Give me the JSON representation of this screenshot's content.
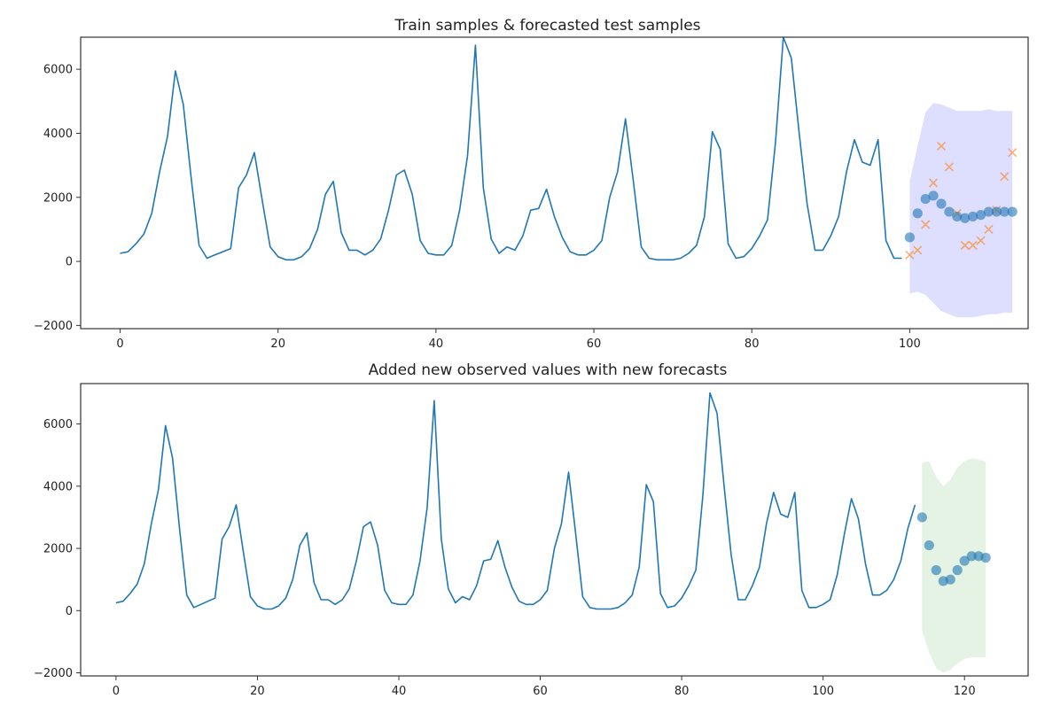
{
  "chart_data": [
    {
      "type": "line",
      "title": "Train samples & forecasted test samples",
      "xlabel": "",
      "ylabel": "",
      "xlim": [
        -5,
        115
      ],
      "ylim": [
        -2100,
        7000
      ],
      "xticks": [
        0,
        20,
        40,
        60,
        80,
        100
      ],
      "yticks": [
        -2000,
        0,
        2000,
        4000,
        6000
      ],
      "grid": false,
      "colors": {
        "train": "#1f77b4",
        "forecast": "#1f77b4",
        "test": "#ff7f0e",
        "band": "#0000ff"
      },
      "train": {
        "x": [
          0,
          1,
          2,
          3,
          4,
          5,
          6,
          7,
          8,
          9,
          10,
          11,
          12,
          13,
          14,
          15,
          16,
          17,
          18,
          19,
          20,
          21,
          22,
          23,
          24,
          25,
          26,
          27,
          28,
          29,
          30,
          31,
          32,
          33,
          34,
          35,
          36,
          37,
          38,
          39,
          40,
          41,
          42,
          43,
          44,
          45,
          46,
          47,
          48,
          49,
          50,
          51,
          52,
          53,
          54,
          55,
          56,
          57,
          58,
          59,
          60,
          61,
          62,
          63,
          64,
          65,
          66,
          67,
          68,
          69,
          70,
          71,
          72,
          73,
          74,
          75,
          76,
          77,
          78,
          79,
          80,
          81,
          82,
          83,
          84,
          85,
          86,
          87,
          88,
          89,
          90,
          91,
          92,
          93,
          94,
          95,
          96,
          97,
          98,
          99
        ],
        "y": [
          250,
          300,
          550,
          850,
          1500,
          2800,
          3900,
          5950,
          4900,
          2600,
          500,
          100,
          200,
          300,
          400,
          2300,
          2700,
          3400,
          1900,
          450,
          150,
          50,
          50,
          150,
          400,
          1000,
          2100,
          2500,
          900,
          350,
          350,
          200,
          350,
          700,
          1600,
          2700,
          2850,
          2100,
          650,
          250,
          200,
          200,
          500,
          1600,
          3300,
          6750,
          2300,
          700,
          250,
          450,
          350,
          800,
          1600,
          1650,
          2250,
          1400,
          750,
          300,
          200,
          200,
          350,
          650,
          2000,
          2800,
          4450,
          2500,
          450,
          100,
          50,
          50,
          50,
          100,
          250,
          500,
          1400,
          4050,
          3500,
          550,
          100,
          150,
          400,
          800,
          1300,
          3700,
          7000,
          6350,
          4000,
          1800,
          350,
          350,
          800,
          1400,
          2800,
          3800,
          3100,
          3000,
          3800,
          650,
          100,
          100
        ]
      },
      "forecast_mean": {
        "x": [
          100,
          101,
          102,
          103,
          104,
          105,
          106,
          107,
          108,
          109,
          110,
          111,
          112,
          113
        ],
        "y": [
          750,
          1500,
          1950,
          2050,
          1800,
          1550,
          1400,
          1350,
          1400,
          1450,
          1550,
          1550,
          1550,
          1550
        ]
      },
      "test_actual": {
        "x": [
          100,
          101,
          102,
          103,
          104,
          105,
          106,
          107,
          108,
          109,
          110,
          111,
          112,
          113
        ],
        "y": [
          200,
          350,
          1150,
          2450,
          3600,
          2950,
          1500,
          500,
          500,
          650,
          1000,
          1600,
          2650,
          3400
        ]
      },
      "interval_upper": [
        2500,
        3600,
        4650,
        4950,
        4900,
        4800,
        4700,
        4700,
        4700,
        4700,
        4750,
        4700,
        4700,
        4700
      ],
      "interval_lower": [
        -1000,
        -950,
        -1050,
        -1300,
        -1550,
        -1650,
        -1750,
        -1750,
        -1750,
        -1700,
        -1650,
        -1650,
        -1600,
        -1600
      ]
    },
    {
      "type": "line",
      "title": "Added new observed values with new forecasts",
      "xlabel": "",
      "ylabel": "",
      "xlim": [
        -5,
        129
      ],
      "ylim": [
        -2100,
        7300
      ],
      "xticks": [
        0,
        20,
        40,
        60,
        80,
        100,
        120
      ],
      "yticks": [
        -2000,
        0,
        2000,
        4000,
        6000
      ],
      "grid": false,
      "colors": {
        "observed": "#1f77b4",
        "forecast": "#1f77b4",
        "band": "#2ca02c"
      },
      "observed": {
        "x": [
          0,
          1,
          2,
          3,
          4,
          5,
          6,
          7,
          8,
          9,
          10,
          11,
          12,
          13,
          14,
          15,
          16,
          17,
          18,
          19,
          20,
          21,
          22,
          23,
          24,
          25,
          26,
          27,
          28,
          29,
          30,
          31,
          32,
          33,
          34,
          35,
          36,
          37,
          38,
          39,
          40,
          41,
          42,
          43,
          44,
          45,
          46,
          47,
          48,
          49,
          50,
          51,
          52,
          53,
          54,
          55,
          56,
          57,
          58,
          59,
          60,
          61,
          62,
          63,
          64,
          65,
          66,
          67,
          68,
          69,
          70,
          71,
          72,
          73,
          74,
          75,
          76,
          77,
          78,
          79,
          80,
          81,
          82,
          83,
          84,
          85,
          86,
          87,
          88,
          89,
          90,
          91,
          92,
          93,
          94,
          95,
          96,
          97,
          98,
          99,
          100,
          101,
          102,
          103,
          104,
          105,
          106,
          107,
          108,
          109,
          110,
          111,
          112,
          113
        ],
        "y": [
          250,
          300,
          550,
          850,
          1500,
          2800,
          3900,
          5950,
          4900,
          2600,
          500,
          100,
          200,
          300,
          400,
          2300,
          2700,
          3400,
          1900,
          450,
          150,
          50,
          50,
          150,
          400,
          1000,
          2100,
          2500,
          900,
          350,
          350,
          200,
          350,
          700,
          1600,
          2700,
          2850,
          2100,
          650,
          250,
          200,
          200,
          500,
          1600,
          3300,
          6750,
          2300,
          700,
          250,
          450,
          350,
          800,
          1600,
          1650,
          2250,
          1400,
          750,
          300,
          200,
          200,
          350,
          650,
          2000,
          2800,
          4450,
          2500,
          450,
          100,
          50,
          50,
          50,
          100,
          250,
          500,
          1400,
          4050,
          3500,
          550,
          100,
          150,
          400,
          800,
          1300,
          3700,
          7000,
          6350,
          4000,
          1800,
          350,
          350,
          800,
          1400,
          2800,
          3800,
          3100,
          3000,
          3800,
          650,
          100,
          100,
          200,
          350,
          1150,
          2450,
          3600,
          2950,
          1500,
          500,
          500,
          650,
          1000,
          1600,
          2650,
          3400
        ]
      },
      "forecast_mean": {
        "x": [
          114,
          115,
          116,
          117,
          118,
          119,
          120,
          121,
          122,
          123
        ],
        "y": [
          3000,
          2100,
          1300,
          950,
          1000,
          1300,
          1600,
          1750,
          1750,
          1700
        ]
      },
      "interval_upper": [
        4750,
        4800,
        4300,
        4000,
        4200,
        4600,
        4800,
        4900,
        4850,
        4800
      ],
      "interval_lower": [
        -650,
        -1350,
        -1850,
        -2000,
        -1900,
        -1700,
        -1550,
        -1500,
        -1500,
        -1500
      ]
    }
  ]
}
